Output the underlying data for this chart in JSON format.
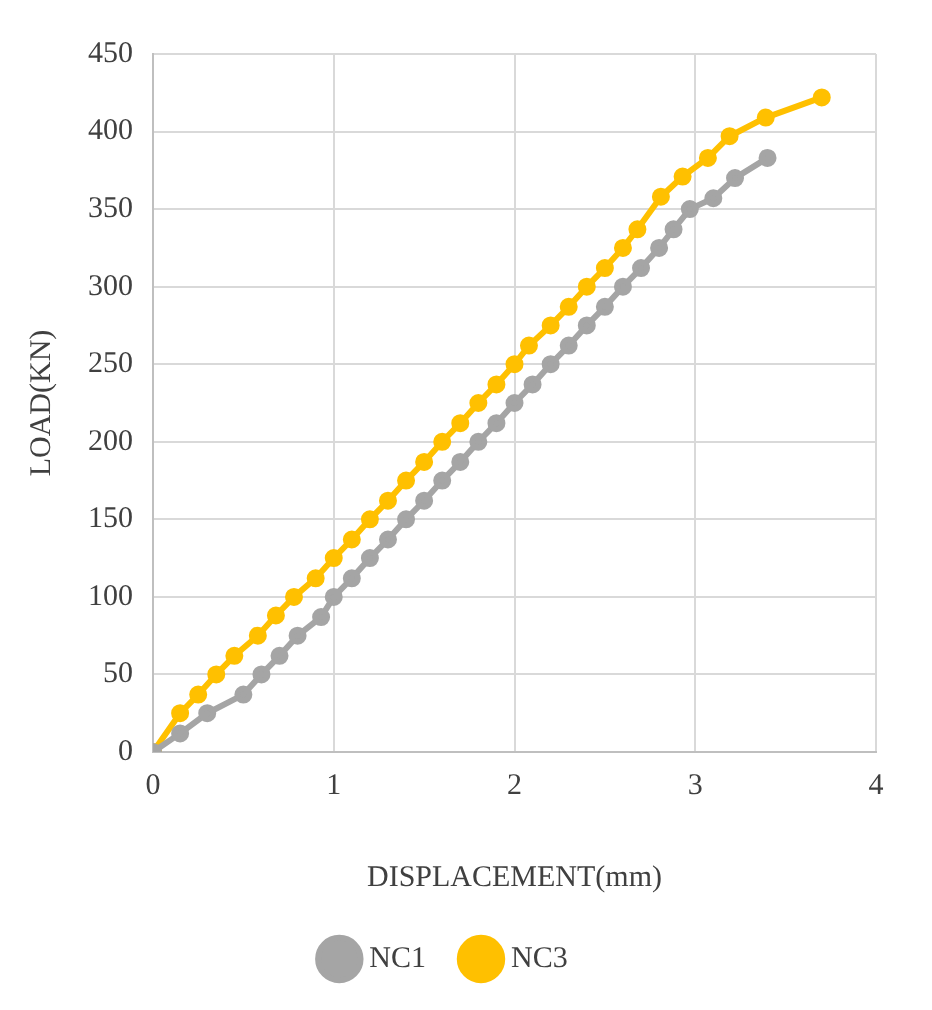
{
  "chart_data": {
    "type": "line",
    "xlabel": "DISPLACEMENT(mm)",
    "ylabel": "LOAD(KN)",
    "xlim": [
      0,
      4
    ],
    "xticks": [
      0,
      1,
      2,
      3,
      4
    ],
    "ylim": [
      0,
      450
    ],
    "yticks": [
      0,
      50,
      100,
      150,
      200,
      250,
      300,
      350,
      400,
      450
    ],
    "grid": true,
    "legend": "bottom",
    "marker": "circle",
    "line_style": "solid",
    "series": [
      {
        "name": "NC1",
        "color": "#a5a5a5",
        "x": [
          0,
          0.15,
          0.3,
          0.5,
          0.6,
          0.7,
          0.8,
          0.93,
          1.0,
          1.1,
          1.2,
          1.3,
          1.4,
          1.5,
          1.6,
          1.7,
          1.8,
          1.9,
          2.0,
          2.1,
          2.2,
          2.3,
          2.4,
          2.5,
          2.6,
          2.7,
          2.8,
          2.88,
          2.97,
          3.1,
          3.22,
          3.4
        ],
        "values": [
          0,
          12,
          25,
          37,
          50,
          62,
          75,
          87,
          100,
          112,
          125,
          137,
          150,
          162,
          175,
          187,
          200,
          212,
          225,
          237,
          250,
          262,
          275,
          287,
          300,
          312,
          325,
          337,
          350,
          357,
          370,
          383
        ]
      },
      {
        "name": "NC3",
        "color": "#ffc000",
        "x": [
          0,
          0.15,
          0.25,
          0.35,
          0.45,
          0.58,
          0.68,
          0.78,
          0.9,
          1.0,
          1.1,
          1.2,
          1.3,
          1.4,
          1.5,
          1.6,
          1.7,
          1.8,
          1.9,
          2.0,
          2.08,
          2.2,
          2.3,
          2.4,
          2.5,
          2.6,
          2.68,
          2.81,
          2.93,
          3.07,
          3.19,
          3.39,
          3.7
        ],
        "values": [
          0,
          25,
          37,
          50,
          62,
          75,
          88,
          100,
          112,
          125,
          137,
          150,
          162,
          175,
          187,
          200,
          212,
          225,
          237,
          250,
          262,
          275,
          287,
          300,
          312,
          325,
          337,
          358,
          371,
          383,
          397,
          409,
          422
        ]
      }
    ]
  }
}
